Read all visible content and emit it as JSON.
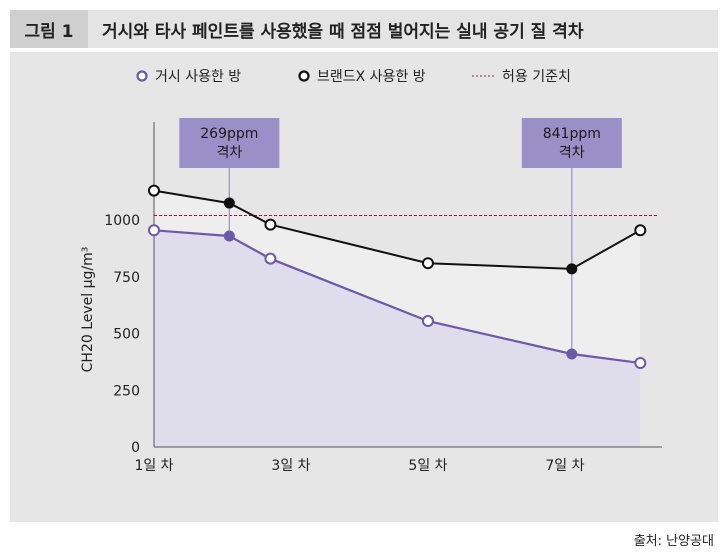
{
  "figure": {
    "label": "그림 1",
    "title": "거시와 타사 페인트를 사용했을 때 점점 벌어지는 실내 공기 질 격차",
    "source": "출처: 난양공대"
  },
  "chart_data": {
    "type": "line",
    "title": "거시와 타사 페인트를 사용했을 때 점점 벌어지는 실내 공기 질 격차",
    "ylabel": "CH20 Level μg/m³",
    "xlabel": "",
    "ylim": [
      0,
      1300
    ],
    "y_ticks": [
      0,
      250,
      500,
      750,
      1000
    ],
    "x_range": [
      1,
      8.3
    ],
    "x_ticks": [
      {
        "x": 1,
        "label": "1일 차"
      },
      {
        "x": 3,
        "label": "3일 차"
      },
      {
        "x": 5,
        "label": "5일 차"
      },
      {
        "x": 7,
        "label": "7일 차"
      }
    ],
    "threshold": {
      "value": 1020,
      "label": "허용 기준치",
      "color": "#9b1c2c"
    },
    "series": [
      {
        "name": "거시 사용한 방",
        "color": "#6c5aa8",
        "area_color": "#dfdcec",
        "x": [
          1,
          2.1,
          2.7,
          5,
          7.1,
          8.1
        ],
        "y": [
          955,
          930,
          830,
          555,
          410,
          370
        ]
      },
      {
        "name": "브랜드X 사용한 방",
        "color": "#111111",
        "area_color": "#eeeeee",
        "x": [
          1,
          2.1,
          2.7,
          5,
          7.1,
          8.1
        ],
        "y": [
          1130,
          1075,
          980,
          810,
          785,
          955
        ]
      }
    ],
    "annotations": [
      {
        "x": 2.1,
        "text_lines": [
          "269ppm",
          "격차"
        ]
      },
      {
        "x": 7.1,
        "text_lines": [
          "841ppm",
          "격차"
        ]
      }
    ],
    "filled_points": [
      1,
      4
    ],
    "legend_position": "top"
  }
}
